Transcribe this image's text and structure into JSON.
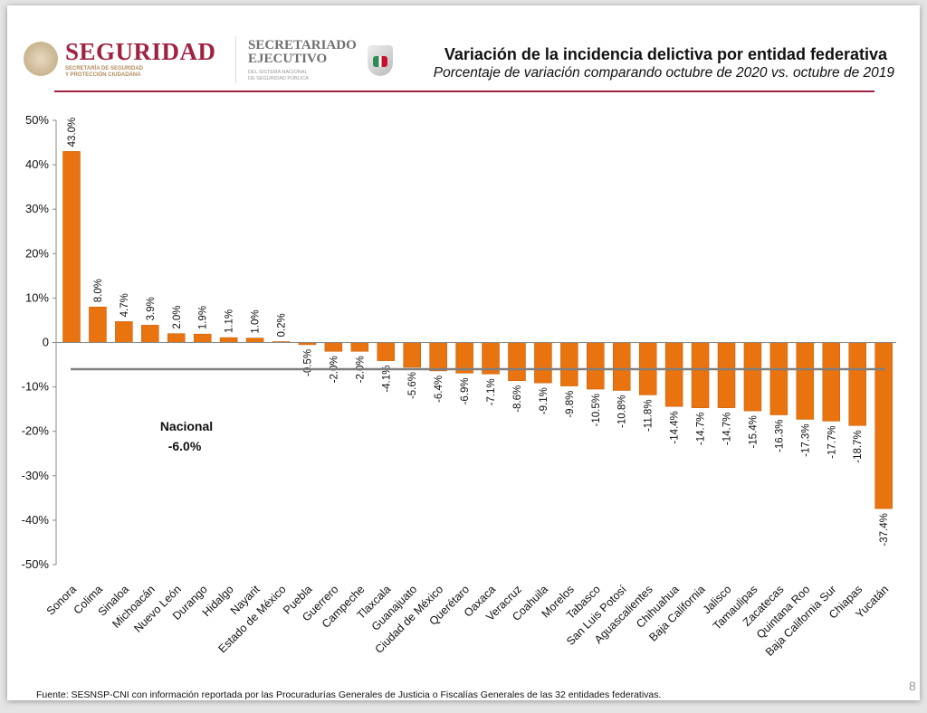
{
  "header": {
    "logo_text": "SEGURIDAD",
    "logo_subtext": [
      "SECRETARÍA DE SEGURIDAD",
      "Y PROTECCIÓN CIUDADANA"
    ],
    "secretariado": [
      "SECRETARIADO",
      "EJECUTIVO"
    ],
    "secretariado_sub": [
      "DEL SISTEMA NACIONAL",
      "DE SEGURIDAD PÚBLICA"
    ],
    "title": "Variación de la incidencia delictiva por entidad federativa",
    "subtitle": "Porcentaje de variación comparando octubre de 2020 vs. octubre de 2019"
  },
  "chart_data": {
    "type": "bar",
    "title": "Variación de la incidencia delictiva por entidad federativa",
    "subtitle": "Porcentaje de variación comparando octubre de 2020 vs. octubre de 2019",
    "categories": [
      "Sonora",
      "Colima",
      "Sinaloa",
      "Michoacán",
      "Nuevo León",
      "Durango",
      "Hidalgo",
      "Nayarit",
      "Estado de México",
      "Puebla",
      "Guerrero",
      "Campeche",
      "Tlaxcala",
      "Guanajuato",
      "Ciudad de México",
      "Querétaro",
      "Oaxaca",
      "Veracruz",
      "Coahuila",
      "Morelos",
      "Tabasco",
      "San Luis Potosí",
      "Aguascalientes",
      "Chihuahua",
      "Baja California",
      "Jalisco",
      "Tamaulipas",
      "Zacatecas",
      "Quintana Roo",
      "Baja California Sur",
      "Chiapas",
      "Yucatán"
    ],
    "values": [
      43.0,
      8.0,
      4.7,
      3.9,
      2.0,
      1.9,
      1.1,
      1.0,
      0.2,
      -0.5,
      -2.0,
      -2.0,
      -4.1,
      -5.6,
      -6.4,
      -6.9,
      -7.1,
      -8.6,
      -9.1,
      -9.8,
      -10.5,
      -10.8,
      -11.8,
      -14.4,
      -14.7,
      -14.7,
      -15.4,
      -16.3,
      -17.3,
      -17.7,
      -18.7,
      -37.4
    ],
    "data_labels": [
      "43.0%",
      "8.0%",
      "4.7%",
      "3.9%",
      "2.0%",
      "1.9%",
      "1.1%",
      "1.0%",
      "0.2%",
      "-0.5%",
      "-2.0%",
      "-2.0%",
      "-4.1%",
      "-5.6%",
      "-6.4%",
      "-6.9%",
      "-7.1%",
      "-8.6%",
      "-9.1%",
      "-9.8%",
      "-10.5%",
      "-10.8%",
      "-11.8%",
      "-14.4%",
      "-14.7%",
      "-14.7%",
      "-15.4%",
      "-16.3%",
      "-17.3%",
      "-17.7%",
      "-18.7%",
      "-37.4%"
    ],
    "yticks": [
      "50%",
      "40%",
      "30%",
      "20%",
      "10%",
      "0",
      "-10%",
      "-20%",
      "-30%",
      "-40%",
      "-50%"
    ],
    "ylim": [
      -50,
      50
    ],
    "bar_color": "#e8730f",
    "reference_line": {
      "value": -6.0,
      "label": "Nacional",
      "value_label": "-6.0%",
      "color": "#7f7f7f"
    },
    "grid": false
  },
  "footer": {
    "source": "Fuente: SESNSP-CNI con información reportada por las Procuradurías Generales de Justicia o Fiscalías Generales de las 32 entidades federativas.",
    "page": "8"
  }
}
